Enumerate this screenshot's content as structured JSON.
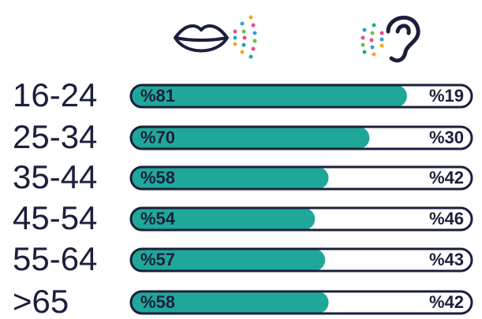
{
  "chart_data": {
    "type": "bar",
    "orientation": "horizontal",
    "stacked": true,
    "categories": [
      "16-24",
      "25-34",
      "35-44",
      "45-54",
      "55-64",
      ">65"
    ],
    "series": [
      {
        "color": "#1fa89a",
        "values": [
          81,
          70,
          58,
          54,
          57,
          58
        ],
        "value_labels": [
          "%81",
          "%70",
          "%58",
          "%54",
          "%57",
          "%58"
        ]
      },
      {
        "color": "#ffffff",
        "values": [
          19,
          30,
          42,
          46,
          43,
          42
        ],
        "value_labels": [
          "%19",
          "%30",
          "%42",
          "%46",
          "%43",
          "%42"
        ]
      }
    ]
  }
}
